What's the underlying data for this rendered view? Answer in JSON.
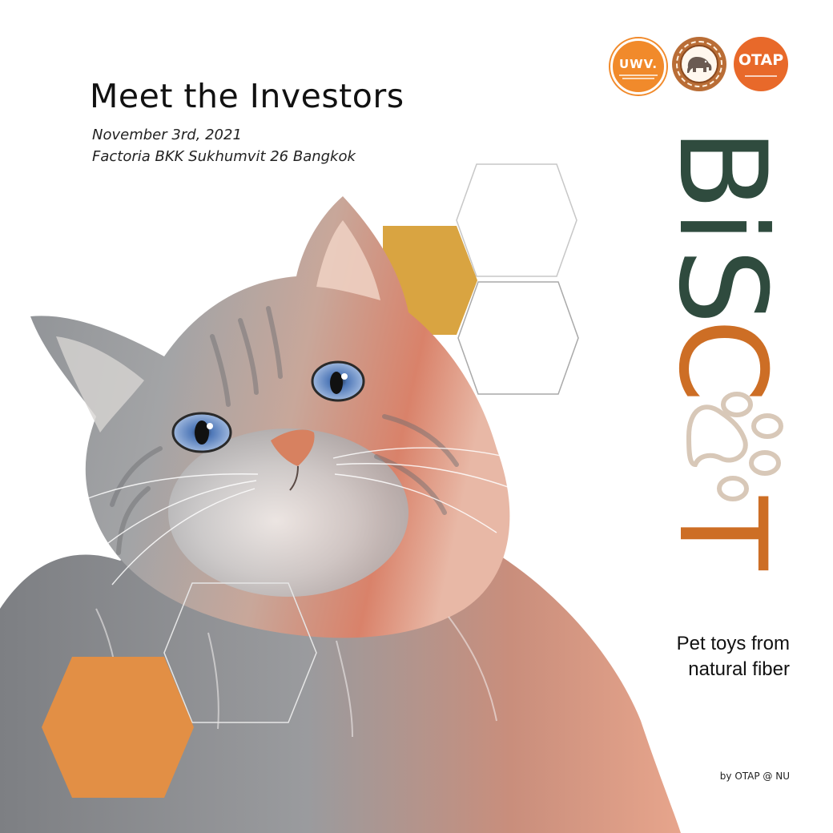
{
  "colors": {
    "brand_green": "#2f4b3e",
    "brand_orange": "#cd6e25",
    "paw_beige": "#d8c8b8",
    "hex_gold": "#d9a441",
    "hex_orange": "#e28f45"
  },
  "logos": [
    {
      "name": "uwv-logo",
      "text": "UWV."
    },
    {
      "name": "elephant-seal-logo",
      "icon": "elephant-icon"
    },
    {
      "name": "otap-logo",
      "text": "OTAP"
    }
  ],
  "header": {
    "title": "Meet the Investors",
    "date": "November 3rd, 2021",
    "venue": "Factoria BKK Sukhumvit 26 Bangkok"
  },
  "brand": {
    "letters": [
      "B",
      "i",
      "S",
      "C",
      "T"
    ],
    "paw_icon": "paw-icon"
  },
  "tagline": {
    "line1": "Pet toys from",
    "line2": "natural fiber"
  },
  "footer": {
    "credit": "by OTAP @ NU"
  },
  "photo": {
    "subject_icon": "cat-photo"
  }
}
